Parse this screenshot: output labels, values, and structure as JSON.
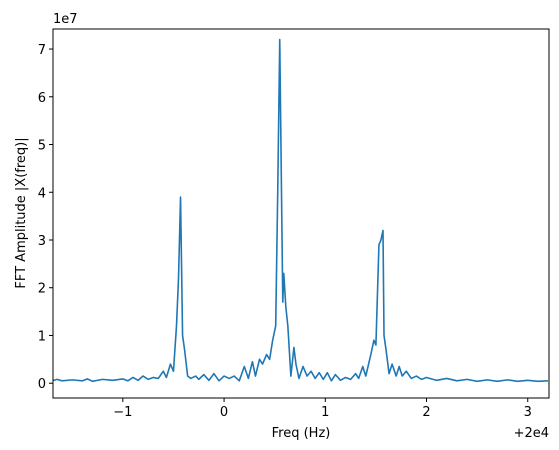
{
  "chart_data": {
    "type": "line",
    "xlabel": "Freq (Hz)",
    "ylabel": "FFT Amplitude |X(freq)|",
    "y_offset_label": "1e7",
    "x_offset_label": "+2e4",
    "color": "#1f77b4",
    "xlim": [
      -1.69,
      3.21
    ],
    "ylim": [
      -0.31,
      7.42
    ],
    "xticks": [
      {
        "value": -1,
        "label": "−1"
      },
      0,
      1,
      2,
      3
    ],
    "yticks": [
      0,
      1,
      2,
      3,
      4,
      5,
      6,
      7
    ],
    "x": [
      -1.7,
      -1.65,
      -1.6,
      -1.5,
      -1.4,
      -1.35,
      -1.3,
      -1.2,
      -1.1,
      -1.0,
      -0.95,
      -0.9,
      -0.85,
      -0.8,
      -0.75,
      -0.7,
      -0.65,
      -0.6,
      -0.57,
      -0.53,
      -0.5,
      -0.47,
      -0.45,
      -0.43,
      -0.41,
      -0.39,
      -0.36,
      -0.33,
      -0.28,
      -0.25,
      -0.2,
      -0.15,
      -0.1,
      -0.05,
      0,
      0.05,
      0.1,
      0.15,
      0.2,
      0.24,
      0.28,
      0.31,
      0.35,
      0.38,
      0.42,
      0.45,
      0.48,
      0.51,
      0.53,
      0.55,
      0.57,
      0.58,
      0.59,
      0.61,
      0.63,
      0.66,
      0.69,
      0.71,
      0.74,
      0.78,
      0.82,
      0.86,
      0.9,
      0.94,
      0.98,
      1.02,
      1.06,
      1.1,
      1.15,
      1.2,
      1.25,
      1.3,
      1.33,
      1.37,
      1.4,
      1.45,
      1.48,
      1.5,
      1.53,
      1.55,
      1.57,
      1.58,
      1.6,
      1.63,
      1.66,
      1.7,
      1.73,
      1.76,
      1.8,
      1.85,
      1.9,
      1.95,
      2.0,
      2.1,
      2.2,
      2.3,
      2.4,
      2.5,
      2.6,
      2.7,
      2.8,
      2.9,
      3.0,
      3.1,
      3.2
    ],
    "values": [
      0.05,
      0.08,
      0.05,
      0.07,
      0.05,
      0.09,
      0.04,
      0.08,
      0.06,
      0.09,
      0.05,
      0.12,
      0.06,
      0.15,
      0.08,
      0.12,
      0.1,
      0.25,
      0.12,
      0.4,
      0.25,
      1.2,
      2.2,
      3.9,
      1.0,
      0.7,
      0.15,
      0.1,
      0.15,
      0.08,
      0.18,
      0.06,
      0.2,
      0.05,
      0.15,
      0.1,
      0.15,
      0.05,
      0.35,
      0.1,
      0.45,
      0.15,
      0.5,
      0.4,
      0.6,
      0.5,
      0.9,
      1.2,
      4.0,
      7.2,
      3.5,
      1.7,
      2.3,
      1.6,
      1.2,
      0.15,
      0.75,
      0.4,
      0.1,
      0.35,
      0.15,
      0.25,
      0.1,
      0.22,
      0.08,
      0.22,
      0.05,
      0.18,
      0.06,
      0.12,
      0.08,
      0.2,
      0.1,
      0.35,
      0.15,
      0.6,
      0.9,
      0.8,
      2.9,
      3.0,
      3.2,
      1.0,
      0.7,
      0.2,
      0.4,
      0.15,
      0.35,
      0.15,
      0.25,
      0.1,
      0.15,
      0.08,
      0.12,
      0.06,
      0.1,
      0.05,
      0.08,
      0.04,
      0.07,
      0.04,
      0.07,
      0.04,
      0.06,
      0.04,
      0.05
    ]
  }
}
